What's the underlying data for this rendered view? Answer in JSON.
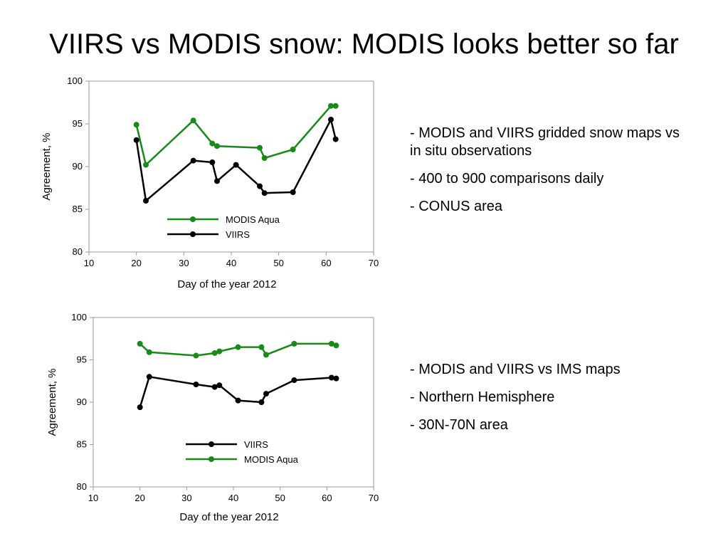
{
  "title": "VIIRS vs MODIS snow: MODIS looks better so far",
  "colors": {
    "modis": "#178a17",
    "viirs": "#000000"
  },
  "bullets_top": [
    "- MODIS and VIIRS gridded snow maps vs in situ observations",
    "- 400 to 900 comparisons daily",
    "- CONUS area"
  ],
  "bullets_bottom": [
    "- MODIS and VIIRS vs IMS maps",
    "- Northern Hemisphere",
    "- 30N-70N area"
  ],
  "chart_data": [
    {
      "type": "line",
      "xlabel": "Day of the year 2012",
      "ylabel": "Agreement, %",
      "xlim": [
        10,
        70
      ],
      "ylim": [
        80,
        100
      ],
      "xticks": [
        10,
        20,
        30,
        40,
        50,
        60,
        70
      ],
      "yticks": [
        80,
        85,
        90,
        95,
        100
      ],
      "grid": false,
      "legend": "bottom-center",
      "legend_order": [
        "MODIS Aqua",
        "VIIRS"
      ],
      "series": [
        {
          "name": "MODIS Aqua",
          "color": "#178a17",
          "x": [
            20,
            22,
            32,
            36,
            37,
            46,
            47,
            53,
            61,
            62
          ],
          "y": [
            94.9,
            90.2,
            95.4,
            92.7,
            92.4,
            92.2,
            91.0,
            92.0,
            97.1,
            97.1
          ]
        },
        {
          "name": "VIIRS",
          "color": "#000000",
          "x": [
            20,
            22,
            32,
            36,
            37,
            41,
            46,
            47,
            53,
            61,
            62
          ],
          "y": [
            93.1,
            86.0,
            90.7,
            90.5,
            88.3,
            90.2,
            87.7,
            86.9,
            87.0,
            95.5,
            93.2
          ]
        }
      ]
    },
    {
      "type": "line",
      "xlabel": "Day of the year 2012",
      "ylabel": "Agreement, %",
      "xlim": [
        10,
        70
      ],
      "ylim": [
        80,
        100
      ],
      "xticks": [
        10,
        20,
        30,
        40,
        50,
        60,
        70
      ],
      "yticks": [
        80,
        85,
        90,
        95,
        100
      ],
      "grid": false,
      "legend": "bottom-center",
      "legend_order": [
        "VIIRS",
        "MODIS Aqua"
      ],
      "series": [
        {
          "name": "MODIS Aqua",
          "color": "#178a17",
          "x": [
            20,
            22,
            32,
            36,
            37,
            41,
            46,
            47,
            53,
            61,
            62
          ],
          "y": [
            96.9,
            95.9,
            95.5,
            95.8,
            96.0,
            96.5,
            96.5,
            95.6,
            96.9,
            96.9,
            96.7
          ]
        },
        {
          "name": "VIIRS",
          "color": "#000000",
          "x": [
            20,
            22,
            32,
            36,
            37,
            41,
            46,
            47,
            53,
            61,
            62
          ],
          "y": [
            89.4,
            93.0,
            92.1,
            91.8,
            92.0,
            90.2,
            90.0,
            91.0,
            92.6,
            92.9,
            92.8
          ]
        }
      ]
    }
  ]
}
